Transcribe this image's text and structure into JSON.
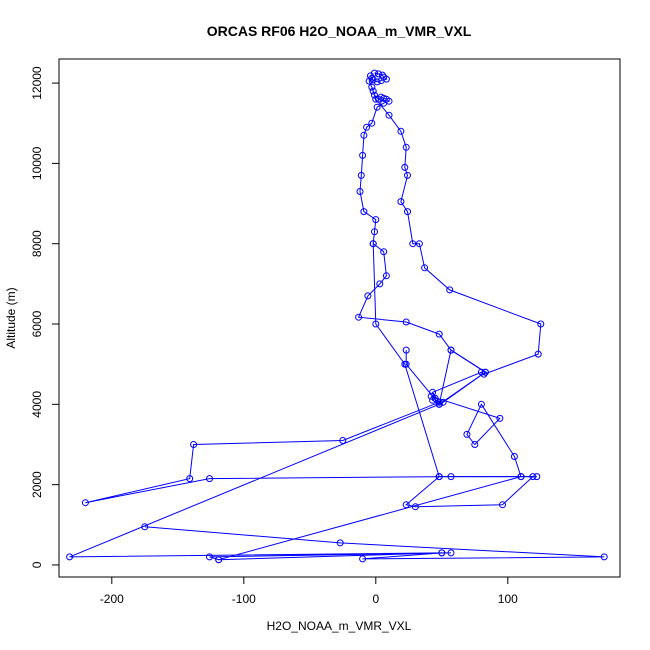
{
  "chart_data": {
    "type": "line",
    "title": "ORCAS RF06 H2O_NOAA_m_VMR_VXL",
    "xlabel": "H2O_NOAA_m_VMR_VXL",
    "ylabel": "Altitude (m)",
    "xlim": [
      -240,
      185
    ],
    "ylim": [
      -300,
      12600
    ],
    "xticks": [
      -200,
      -100,
      0,
      100
    ],
    "yticks": [
      0,
      2000,
      4000,
      6000,
      8000,
      10000,
      12000
    ],
    "grid": false,
    "legend": "none",
    "color": "#0000ff",
    "marker": "open-circle",
    "series": [
      {
        "x": [
          -1,
          2,
          5,
          6,
          8,
          4,
          1,
          -2,
          -4,
          -3,
          -5,
          -3,
          -1,
          2,
          4,
          6,
          8,
          10,
          6,
          1,
          -3,
          -7,
          -9,
          -10,
          -11,
          -12,
          -9,
          0,
          -1,
          -2,
          6,
          8,
          3,
          -6,
          -13,
          23,
          48,
          57,
          83,
          51,
          48,
          43,
          45,
          42,
          94,
          75,
          69,
          80,
          105,
          110,
          48,
          23,
          30,
          96,
          119,
          57,
          -126,
          -220,
          -141,
          -138,
          -25,
          48,
          43,
          80,
          82,
          123,
          125,
          56,
          37,
          33,
          28,
          24,
          19,
          24,
          22,
          23,
          19,
          10,
          0,
          -2
        ],
        "y": [
          12250,
          12230,
          12200,
          12150,
          12100,
          12060,
          12030,
          12080,
          12180,
          12120,
          12050,
          11900,
          11700,
          11600,
          11650,
          11620,
          11600,
          11550,
          11500,
          11400,
          11000,
          10900,
          10700,
          10200,
          9700,
          9300,
          8800,
          8600,
          8300,
          8000,
          7800,
          7200,
          7000,
          6700,
          6170,
          6050,
          5750,
          5350,
          4800,
          4050,
          4000,
          4100,
          4150,
          4200,
          3650,
          3000,
          3250,
          4000,
          2700,
          2200,
          2200,
          1500,
          1450,
          1500,
          2200,
          2200,
          2150,
          1550,
          2150,
          3000,
          3100,
          4050,
          4300,
          4800,
          4750,
          5250,
          6000,
          6850,
          7400,
          8000,
          8000,
          8800,
          9050,
          9700,
          9900,
          10400,
          10800,
          11200,
          11600,
          11800
        ]
      },
      {
        "x": [
          23,
          23,
          48,
          83,
          57,
          48,
          -232,
          50,
          57,
          -126,
          -119,
          110,
          122,
          48,
          22,
          0,
          -2
        ],
        "y": [
          5350,
          5000,
          4000,
          4800,
          5350,
          4000,
          200,
          300,
          300,
          200,
          130,
          2200,
          2200,
          2200,
          5000,
          6000,
          8000
        ]
      },
      {
        "x": [
          -175,
          -27,
          173,
          -10,
          50,
          -119
        ],
        "y": [
          950,
          550,
          200,
          150,
          300,
          130
        ]
      }
    ]
  }
}
